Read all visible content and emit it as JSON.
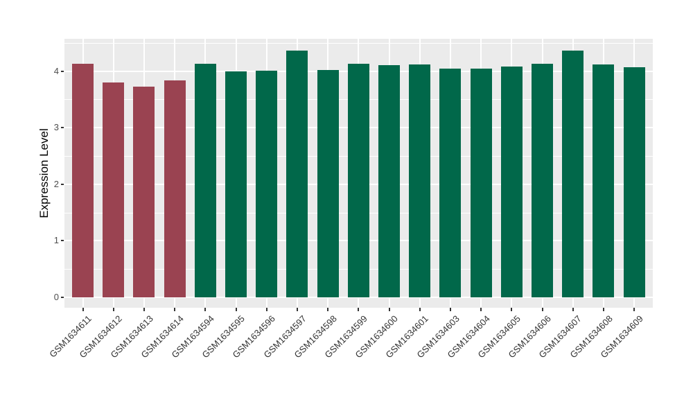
{
  "figure": {
    "title": "",
    "background_color": "#FFFFFF",
    "panel_background_color": "#EBEBEB",
    "gridline_color": "#FFFFFF",
    "tick_mark_color": "#333333",
    "tick_label_color": "#4D4D4D",
    "axis_title_color": "#000000"
  },
  "chart_data": {
    "type": "bar",
    "title": "",
    "xlabel": "",
    "ylabel": "Expression Level",
    "categories": [
      "GSM1634611",
      "GSM1634612",
      "GSM1634613",
      "GSM1634614",
      "GSM1634594",
      "GSM1634595",
      "GSM1634596",
      "GSM1634597",
      "GSM1634598",
      "GSM1634599",
      "GSM1634600",
      "GSM1634601",
      "GSM1634603",
      "GSM1634604",
      "GSM1634605",
      "GSM1634606",
      "GSM1634607",
      "GSM1634608",
      "GSM1634609"
    ],
    "values": [
      4.13,
      3.8,
      3.72,
      3.84,
      4.13,
      4.0,
      4.01,
      4.36,
      4.02,
      4.13,
      4.11,
      4.12,
      4.05,
      4.05,
      4.08,
      4.13,
      4.36,
      4.12,
      4.07
    ],
    "bar_colors": [
      "#9A4351",
      "#9A4351",
      "#9A4351",
      "#9A4351",
      "#01684A",
      "#01684A",
      "#01684A",
      "#01684A",
      "#01684A",
      "#01684A",
      "#01684A",
      "#01684A",
      "#01684A",
      "#01684A",
      "#01684A",
      "#01684A",
      "#01684A",
      "#01684A",
      "#01684A"
    ],
    "palette": {
      "red_group": "#9A4351",
      "green_group": "#01684A"
    },
    "y_ticks": [
      0,
      1,
      2,
      3,
      4
    ],
    "y_minor_ticks": [
      0.5,
      1.5,
      2.5,
      3.5,
      4.5
    ],
    "ylim": [
      0,
      4.6
    ],
    "grid": "horizontal major+minor, vertical major at category centers",
    "legend": "none",
    "x_label_rotation_deg": 45
  }
}
